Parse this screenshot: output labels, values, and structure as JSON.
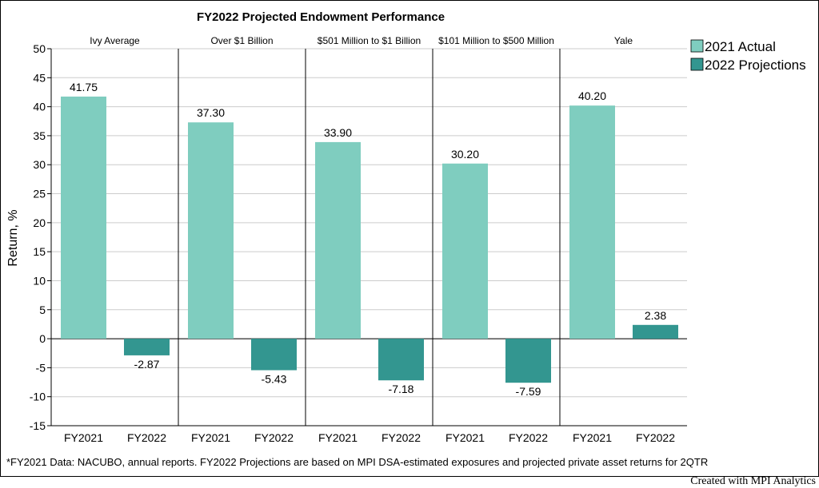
{
  "chart_data": {
    "type": "bar",
    "title": "FY2022 Projected Endowment Performance",
    "ylabel": "Return, %",
    "ylim": [
      -15,
      50
    ],
    "yticks": [
      50,
      45,
      40,
      35,
      30,
      25,
      20,
      15,
      10,
      5,
      0,
      -5,
      -10,
      -15
    ],
    "grid": true,
    "legend_placement": "top-right",
    "categories": [
      "FY2021",
      "FY2022"
    ],
    "panels": [
      {
        "label": "Ivy Average",
        "values": [
          41.75,
          -2.87
        ],
        "labels": [
          "41.75",
          "-2.87"
        ]
      },
      {
        "label": "Over $1 Billion",
        "values": [
          37.3,
          -5.43
        ],
        "labels": [
          "37.30",
          "-5.43"
        ]
      },
      {
        "label": "$501 Million to $1 Billion",
        "values": [
          33.9,
          -7.18
        ],
        "labels": [
          "33.90",
          "-7.18"
        ]
      },
      {
        "label": "$101 Million to $500 Million",
        "values": [
          30.2,
          -7.59
        ],
        "labels": [
          "30.20",
          "-7.59"
        ]
      },
      {
        "label": "Yale",
        "values": [
          40.2,
          2.38
        ],
        "labels": [
          "40.20",
          "2.38"
        ]
      }
    ],
    "series": [
      {
        "name": "2021 Actual",
        "color": "#7fcdbf"
      },
      {
        "name": "2022 Projections",
        "color": "#339690"
      }
    ],
    "footnote": "*FY2021 Data: NACUBO, annual reports. FY2022 Projections are based on MPI DSA-estimated exposures and projected private asset returns for 2QTR"
  },
  "credit": "Created with MPI Analytics"
}
